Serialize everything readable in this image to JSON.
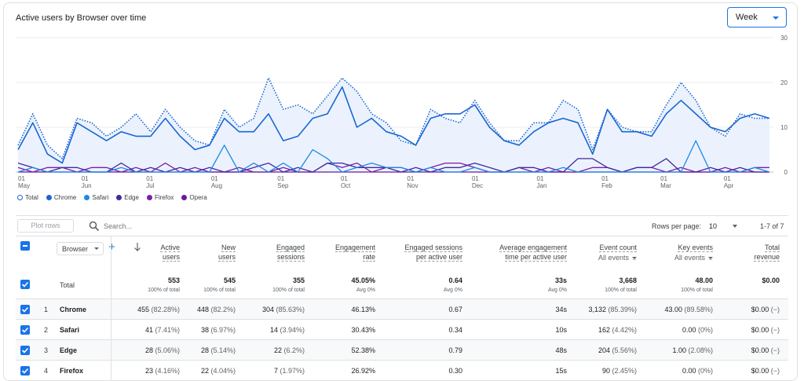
{
  "card": {
    "title": "Active users by Browser over time",
    "period_select": "Week"
  },
  "chart_data": {
    "type": "line",
    "x_tick_labels": [
      {
        "day": "01",
        "month": "May"
      },
      {
        "day": "01",
        "month": "Jun"
      },
      {
        "day": "01",
        "month": "Jul"
      },
      {
        "day": "01",
        "month": "Aug"
      },
      {
        "day": "01",
        "month": "Sep"
      },
      {
        "day": "01",
        "month": "Oct"
      },
      {
        "day": "01",
        "month": "Nov"
      },
      {
        "day": "01",
        "month": "Dec"
      },
      {
        "day": "01",
        "month": "Jan"
      },
      {
        "day": "01",
        "month": "Feb"
      },
      {
        "day": "01",
        "month": "Mar"
      },
      {
        "day": "01",
        "month": "Apr"
      }
    ],
    "y_ticks": [
      "30",
      "20",
      "10",
      "0"
    ],
    "ylim": [
      0,
      30
    ],
    "weeks": 52,
    "series": [
      {
        "name": "Total",
        "color": "#1967d2",
        "style": "dotted",
        "values": [
          6,
          13,
          6,
          3,
          12,
          11,
          8,
          10,
          13,
          9,
          14,
          10,
          7,
          6,
          14,
          10,
          12,
          21,
          14,
          15,
          13,
          17,
          21,
          18,
          13,
          11,
          7,
          6,
          14,
          12,
          11,
          16,
          11,
          7,
          7,
          11,
          11,
          16,
          14,
          5,
          14,
          10,
          9,
          9,
          15,
          20,
          16,
          10,
          8,
          13,
          12,
          12
        ]
      },
      {
        "name": "Chrome",
        "color": "#1967d2",
        "style": "solid",
        "values": [
          5,
          11,
          4,
          2,
          11,
          9,
          7,
          9,
          8,
          8,
          12,
          8,
          5,
          6,
          12,
          9,
          9,
          13,
          7,
          8,
          12,
          13,
          19,
          10,
          12,
          9,
          8,
          6,
          12,
          13,
          13,
          15,
          10,
          7,
          6,
          9,
          11,
          12,
          11,
          4,
          14,
          9,
          9,
          8,
          13,
          16,
          13,
          10,
          9,
          12,
          13,
          12
        ]
      },
      {
        "name": "Safari",
        "color": "#1e88e5",
        "style": "solid",
        "values": [
          0,
          1,
          0,
          0,
          0,
          0,
          0,
          1,
          0,
          0,
          0,
          0,
          0,
          0,
          6,
          0,
          2,
          0,
          2,
          0,
          5,
          3,
          0,
          1,
          2,
          1,
          1,
          0,
          1,
          0,
          0,
          1,
          0,
          0,
          0,
          0,
          0,
          1,
          0,
          0,
          0,
          0,
          0,
          0,
          0,
          0,
          7,
          0,
          0,
          0,
          1,
          0
        ]
      },
      {
        "name": "Edge",
        "color": "#4527a0",
        "style": "solid",
        "values": [
          2,
          1,
          0,
          1,
          1,
          0,
          0,
          2,
          0,
          1,
          0,
          1,
          0,
          1,
          0,
          0,
          1,
          2,
          0,
          1,
          0,
          2,
          2,
          1,
          1,
          1,
          0,
          1,
          0,
          1,
          1,
          2,
          1,
          0,
          1,
          1,
          0,
          0,
          3,
          3,
          1,
          0,
          1,
          1,
          3,
          0,
          0,
          1,
          0,
          1,
          0,
          0
        ]
      },
      {
        "name": "Firefox",
        "color": "#7b1fa2",
        "style": "solid",
        "values": [
          1,
          0,
          1,
          1,
          0,
          1,
          1,
          0,
          1,
          0,
          2,
          0,
          1,
          0,
          0,
          1,
          0,
          0,
          1,
          0,
          0,
          2,
          1,
          2,
          0,
          1,
          1,
          0,
          1,
          2,
          2,
          1,
          0,
          0,
          1,
          0,
          1,
          0,
          0,
          1,
          1,
          0,
          1,
          1,
          0,
          1,
          0,
          0,
          1,
          0,
          1,
          1
        ]
      },
      {
        "name": "Opera",
        "color": "#6a1b9a",
        "style": "solid",
        "values": [
          0,
          0,
          0,
          0,
          0,
          0,
          0,
          0,
          0,
          0,
          0,
          0,
          0,
          0,
          0,
          0,
          0,
          0,
          0,
          0,
          0,
          0,
          0,
          0,
          0,
          0,
          0,
          0,
          0,
          0,
          0,
          0,
          0,
          0,
          0,
          0,
          0,
          0,
          0,
          0,
          0,
          0,
          0,
          0,
          0,
          0,
          0,
          0,
          0,
          0,
          0,
          0
        ]
      }
    ]
  },
  "legend": [
    {
      "label": "Total",
      "color": "#ffffff",
      "border": "#1967d2"
    },
    {
      "label": "Chrome",
      "color": "#1967d2"
    },
    {
      "label": "Safari",
      "color": "#1e88e5"
    },
    {
      "label": "Edge",
      "color": "#4527a0"
    },
    {
      "label": "Firefox",
      "color": "#7b1fa2"
    },
    {
      "label": "Opera",
      "color": "#6a1b9a"
    }
  ],
  "toolbar": {
    "plot_rows": "Plot rows",
    "search_placeholder": "Search...",
    "rows_per_page_label": "Rows per page:",
    "rows_per_page_value": "10",
    "pagination": "1-7 of 7"
  },
  "table": {
    "dimension": "Browser",
    "columns": [
      {
        "l1": "Active",
        "l2": "users",
        "sub": ""
      },
      {
        "l1": "New",
        "l2": "users",
        "sub": ""
      },
      {
        "l1": "Engaged",
        "l2": "sessions",
        "sub": ""
      },
      {
        "l1": "Engagement",
        "l2": "rate",
        "sub": ""
      },
      {
        "l1": "Engaged sessions",
        "l2": "per active user",
        "sub": ""
      },
      {
        "l1": "Average engagement",
        "l2": "time per active user",
        "sub": ""
      },
      {
        "l1": "Event count",
        "l2": "",
        "sub": "All events"
      },
      {
        "l1": "Key events",
        "l2": "",
        "sub": "All events"
      },
      {
        "l1": "Total",
        "l2": "revenue",
        "sub": ""
      }
    ],
    "total": {
      "label": "Total",
      "values": [
        "553",
        "545",
        "355",
        "45.05%",
        "0.64",
        "33s",
        "3,668",
        "48.00",
        "$0.00"
      ],
      "subs": [
        "100% of total",
        "100% of total",
        "100% of total",
        "Avg 0%",
        "Avg 0%",
        "Avg 0%",
        "100% of total",
        "100% of total",
        ""
      ]
    },
    "rows": [
      {
        "n": "1",
        "name": "Chrome",
        "cells": [
          [
            "455",
            "(82.28%)"
          ],
          [
            "448",
            "(82.2%)"
          ],
          [
            "304",
            "(85.63%)"
          ],
          [
            "46.13%",
            ""
          ],
          [
            "0.67",
            ""
          ],
          [
            "34s",
            ""
          ],
          [
            "3,132",
            "(85.39%)"
          ],
          [
            "43.00",
            "(89.58%)"
          ],
          [
            "$0.00",
            "(−)"
          ]
        ]
      },
      {
        "n": "2",
        "name": "Safari",
        "cells": [
          [
            "41",
            "(7.41%)"
          ],
          [
            "38",
            "(6.97%)"
          ],
          [
            "14",
            "(3.94%)"
          ],
          [
            "30.43%",
            ""
          ],
          [
            "0.34",
            ""
          ],
          [
            "10s",
            ""
          ],
          [
            "162",
            "(4.42%)"
          ],
          [
            "0.00",
            "(0%)"
          ],
          [
            "$0.00",
            "(−)"
          ]
        ]
      },
      {
        "n": "3",
        "name": "Edge",
        "cells": [
          [
            "28",
            "(5.06%)"
          ],
          [
            "28",
            "(5.14%)"
          ],
          [
            "22",
            "(6.2%)"
          ],
          [
            "52.38%",
            ""
          ],
          [
            "0.79",
            ""
          ],
          [
            "48s",
            ""
          ],
          [
            "204",
            "(5.56%)"
          ],
          [
            "1.00",
            "(2.08%)"
          ],
          [
            "$0.00",
            "(−)"
          ]
        ]
      },
      {
        "n": "4",
        "name": "Firefox",
        "cells": [
          [
            "23",
            "(4.16%)"
          ],
          [
            "22",
            "(4.04%)"
          ],
          [
            "7",
            "(1.97%)"
          ],
          [
            "26.92%",
            ""
          ],
          [
            "0.30",
            ""
          ],
          [
            "15s",
            ""
          ],
          [
            "90",
            "(2.45%)"
          ],
          [
            "0.00",
            "(0%)"
          ],
          [
            "$0.00",
            "(−)"
          ]
        ]
      }
    ]
  }
}
